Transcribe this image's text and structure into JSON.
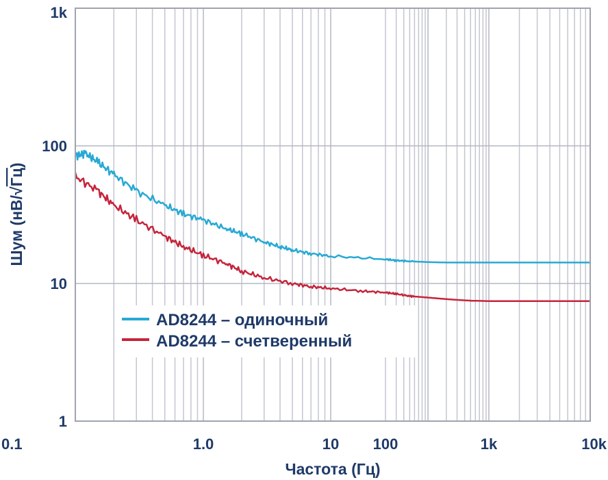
{
  "chart_data": {
    "type": "line",
    "title": "",
    "xlabel": "Частота (Гц)",
    "ylabel_main": "Шум (нВ/",
    "ylabel_root": "Гц",
    "ylabel_close": ")",
    "x_scale": "log",
    "y_scale": "log",
    "xlim": [
      0.1,
      10000
    ],
    "ylim": [
      1,
      1000
    ],
    "grid": true,
    "legend_position": "center-left",
    "x_ticks": [
      "0.1",
      "1.0",
      "10",
      "100",
      "1k",
      "10k"
    ],
    "y_ticks": [
      "1",
      "10",
      "100",
      "1k"
    ],
    "series": [
      {
        "name": "AD8244 – одиночный",
        "color": "#27a9d4",
        "x": [
          0.1,
          0.12,
          0.15,
          0.2,
          0.3,
          0.5,
          0.7,
          1,
          1.5,
          2,
          3,
          4,
          5,
          7,
          10,
          20,
          30,
          50,
          100,
          200,
          500,
          1000,
          2000,
          5000,
          10000
        ],
        "y": [
          85,
          88,
          76,
          62,
          47,
          37,
          32,
          29,
          25,
          23,
          20,
          18.5,
          17.5,
          16.5,
          15.8,
          15,
          14.7,
          14.5,
          14.3,
          14.2,
          14.2,
          14.2,
          14.2,
          14.2,
          14.2
        ]
      },
      {
        "name": "AD8244 – счетверенный",
        "color": "#c4253c",
        "x": [
          0.1,
          0.15,
          0.2,
          0.3,
          0.5,
          0.7,
          1,
          1.5,
          2,
          3,
          5,
          7,
          10,
          15,
          20,
          30,
          50,
          70,
          100,
          200,
          300,
          500,
          1000,
          2000,
          5000,
          10000
        ],
        "y": [
          60,
          47,
          37,
          29,
          22,
          18.5,
          16,
          14,
          12.3,
          11,
          10,
          9.5,
          9.2,
          8.8,
          8.6,
          8.4,
          8.1,
          8,
          7.9,
          7.7,
          7.6,
          7.5,
          7.45,
          7.45,
          7.45,
          7.45
        ]
      }
    ]
  }
}
